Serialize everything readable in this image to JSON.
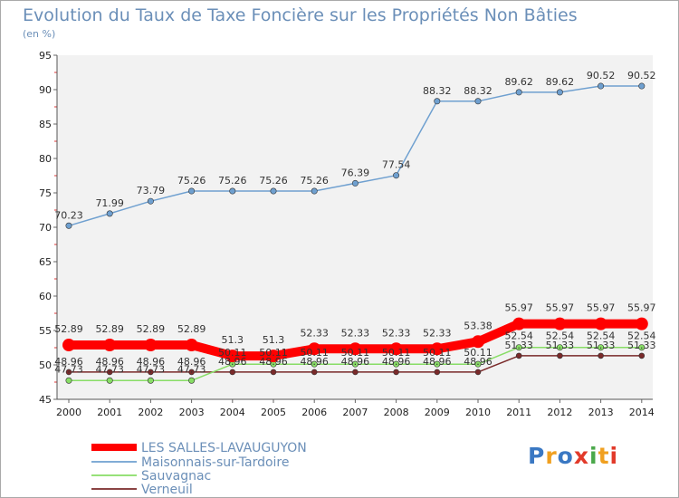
{
  "title": "Evolution du Taux de Taxe Foncière sur les Propriétés Non Bâties",
  "subtitle": "(en %)",
  "brand": {
    "letters": [
      "P",
      "r",
      "o",
      "x",
      "i",
      "t",
      "i"
    ],
    "colors": [
      "#3a78c3",
      "#f0a020",
      "#3a78c3",
      "#e23a2a",
      "#4aa84a",
      "#f0a020",
      "#e23a2a"
    ]
  },
  "chart_data": {
    "type": "line",
    "x": [
      "2000",
      "2001",
      "2002",
      "2003",
      "2004",
      "2005",
      "2006",
      "2007",
      "2008",
      "2009",
      "2010",
      "2011",
      "2012",
      "2013",
      "2014"
    ],
    "ylim": [
      45,
      95
    ],
    "yticks": [
      45,
      50,
      55,
      60,
      65,
      70,
      75,
      80,
      85,
      90,
      95
    ],
    "grid": false,
    "legend_position": "bottom-left",
    "series": [
      {
        "name": "LES SALLES-LAVAUGUYON",
        "color": "#ff0000",
        "values": [
          52.89,
          52.89,
          52.89,
          52.89,
          51.3,
          51.3,
          52.33,
          52.33,
          52.33,
          52.33,
          53.38,
          55.97,
          55.97,
          55.97,
          55.97
        ],
        "labels": [
          "52.89",
          "52.89",
          "52.89",
          "52.89",
          "51.3",
          "51.3",
          "52.33",
          "52.33",
          "52.33",
          "52.33",
          "53.38",
          "55.97",
          "55.97",
          "55.97",
          "55.97"
        ]
      },
      {
        "name": "Maisonnais-sur-Tardoire",
        "color": "#6fa0d0",
        "values": [
          70.23,
          71.99,
          73.79,
          75.26,
          75.26,
          75.26,
          75.26,
          76.39,
          77.54,
          88.32,
          88.32,
          89.62,
          89.62,
          90.52,
          90.52
        ],
        "labels": [
          "70.23",
          "71.99",
          "73.79",
          "75.26",
          "75.26",
          "75.26",
          "75.26",
          "76.39",
          "77.54",
          "88.32",
          "88.32",
          "89.62",
          "89.62",
          "90.52",
          "90.52"
        ]
      },
      {
        "name": "Sauvagnac",
        "color": "#88dd66",
        "values": [
          47.73,
          47.73,
          47.73,
          47.73,
          50.11,
          50.11,
          50.11,
          50.11,
          50.11,
          50.11,
          50.11,
          52.54,
          52.54,
          52.54,
          52.54
        ],
        "labels": [
          "47.73",
          "47.73",
          "47.73",
          "47.73",
          "50.11",
          "50.11",
          "50.11",
          "50.11",
          "50.11",
          "50.11",
          "50.11",
          "52.54",
          "52.54",
          "52.54",
          "52.54"
        ]
      },
      {
        "name": "Verneuil",
        "color": "#7a2a2a",
        "values": [
          48.96,
          48.96,
          48.96,
          48.96,
          48.96,
          48.96,
          48.96,
          48.96,
          48.96,
          48.96,
          48.96,
          51.33,
          51.33,
          51.33,
          51.33
        ],
        "labels": [
          "48.96",
          "48.96",
          "48.96",
          "48.96",
          "48.96",
          "48.96",
          "48.96",
          "48.96",
          "48.96",
          "48.96",
          "48.96",
          "51.33",
          "51.33",
          "51.33",
          "51.33"
        ]
      }
    ]
  }
}
